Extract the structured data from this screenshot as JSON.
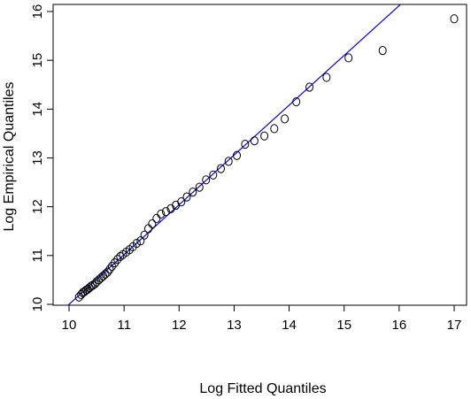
{
  "chart_data": {
    "type": "scatter",
    "xlabel": "Log Fitted Quantiles",
    "ylabel": "Log Empirical Quantiles",
    "xlim": [
      10,
      17
    ],
    "ylim": [
      10,
      16
    ],
    "x_ticks": [
      "10",
      "11",
      "12",
      "13",
      "14",
      "15",
      "16",
      "17"
    ],
    "y_ticks": [
      "10",
      "11",
      "12",
      "13",
      "14",
      "15",
      "16"
    ],
    "reference_line": {
      "intercept": -0.2,
      "slope": 1.02,
      "color": "#0000ff"
    },
    "point_color": "#000000",
    "points": [
      [
        10.18,
        10.15
      ],
      [
        10.22,
        10.2
      ],
      [
        10.25,
        10.24
      ],
      [
        10.28,
        10.26
      ],
      [
        10.31,
        10.29
      ],
      [
        10.34,
        10.31
      ],
      [
        10.37,
        10.34
      ],
      [
        10.4,
        10.37
      ],
      [
        10.43,
        10.39
      ],
      [
        10.47,
        10.42
      ],
      [
        10.5,
        10.46
      ],
      [
        10.54,
        10.5
      ],
      [
        10.58,
        10.54
      ],
      [
        10.62,
        10.58
      ],
      [
        10.66,
        10.62
      ],
      [
        10.7,
        10.66
      ],
      [
        10.74,
        10.72
      ],
      [
        10.78,
        10.78
      ],
      [
        10.83,
        10.85
      ],
      [
        10.88,
        10.92
      ],
      [
        10.93,
        10.98
      ],
      [
        10.98,
        11.02
      ],
      [
        11.04,
        11.07
      ],
      [
        11.1,
        11.12
      ],
      [
        11.16,
        11.18
      ],
      [
        11.23,
        11.25
      ],
      [
        11.3,
        11.3
      ],
      [
        11.37,
        11.42
      ],
      [
        11.44,
        11.55
      ],
      [
        11.51,
        11.65
      ],
      [
        11.59,
        11.76
      ],
      [
        11.67,
        11.85
      ],
      [
        11.76,
        11.9
      ],
      [
        11.85,
        11.96
      ],
      [
        11.94,
        12.03
      ],
      [
        12.04,
        12.1
      ],
      [
        12.14,
        12.2
      ],
      [
        12.25,
        12.3
      ],
      [
        12.37,
        12.4
      ],
      [
        12.49,
        12.55
      ],
      [
        12.62,
        12.65
      ],
      [
        12.76,
        12.78
      ],
      [
        12.9,
        12.93
      ],
      [
        13.05,
        13.05
      ],
      [
        13.2,
        13.28
      ],
      [
        13.37,
        13.35
      ],
      [
        13.55,
        13.45
      ],
      [
        13.73,
        13.6
      ],
      [
        13.92,
        13.8
      ],
      [
        14.13,
        14.15
      ],
      [
        14.37,
        14.45
      ],
      [
        14.68,
        14.65
      ],
      [
        15.08,
        15.05
      ],
      [
        15.7,
        15.2
      ],
      [
        17.0,
        15.85
      ]
    ]
  }
}
